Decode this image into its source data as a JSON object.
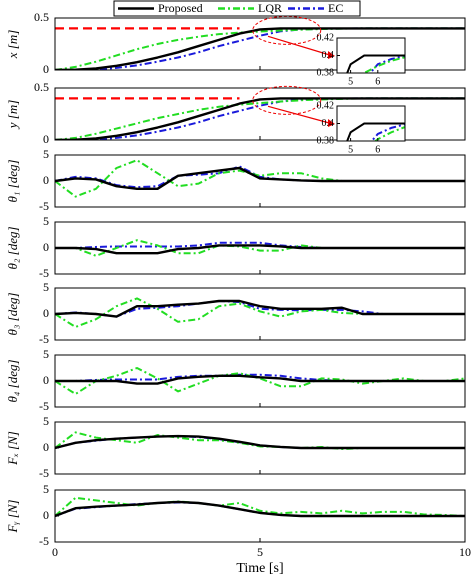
{
  "chart_data": [
    {
      "type": "line",
      "ylabel": "x [m]",
      "legend": "top",
      "x": [
        0,
        0.5,
        1,
        1.5,
        2,
        2.5,
        3,
        3.5,
        4,
        4.5,
        5,
        5.5,
        6,
        6.5,
        7,
        7.5,
        8,
        8.5,
        9,
        9.5,
        10
      ],
      "xlim": [
        0,
        10
      ],
      "xticks": [
        0,
        5,
        10
      ],
      "ylim": [
        0,
        0.5
      ],
      "yticks": [
        0,
        0.5
      ],
      "series": [
        {
          "name": "Proposed",
          "color": "#000000",
          "linestyle": "solid",
          "values": [
            0,
            0.003,
            0.015,
            0.04,
            0.075,
            0.12,
            0.17,
            0.23,
            0.29,
            0.35,
            0.39,
            0.4,
            0.4,
            0.4,
            0.4,
            0.4,
            0.4,
            0.4,
            0.4,
            0.4,
            0.4
          ]
        },
        {
          "name": "LQR",
          "color": "#22dd22",
          "linestyle": "dashdot",
          "values": [
            0,
            0.03,
            0.08,
            0.14,
            0.2,
            0.25,
            0.29,
            0.32,
            0.345,
            0.36,
            0.37,
            0.38,
            0.388,
            0.394,
            0.398,
            0.4,
            0.4,
            0.4,
            0.4,
            0.4,
            0.4
          ]
        },
        {
          "name": "EC",
          "color": "#1a1adb",
          "linestyle": "dashdot",
          "values": [
            0,
            0.002,
            0.008,
            0.02,
            0.045,
            0.08,
            0.12,
            0.17,
            0.23,
            0.28,
            0.33,
            0.372,
            0.39,
            0.396,
            0.399,
            0.4,
            0.4,
            0.4,
            0.4,
            0.4,
            0.4
          ]
        }
      ],
      "reference": {
        "color": "#ff0000",
        "values": [
          0.4,
          0.4,
          0.4,
          0.4,
          0.4,
          0.4,
          0.4,
          0.4,
          0.4,
          0.4,
          null,
          null,
          null,
          null,
          null,
          null,
          null,
          null,
          null,
          null,
          null
        ]
      },
      "inset": {
        "xlim": [
          4.5,
          7
        ],
        "xticks": [
          5,
          6
        ],
        "ylim": [
          0.38,
          0.42
        ],
        "yticks": [
          0.38,
          0.4,
          0.42
        ]
      }
    },
    {
      "type": "line",
      "ylabel": "y [m]",
      "x": [
        0,
        0.5,
        1,
        1.5,
        2,
        2.5,
        3,
        3.5,
        4,
        4.5,
        5,
        5.5,
        6,
        6.5,
        7,
        7.5,
        8,
        8.5,
        9,
        9.5,
        10
      ],
      "xlim": [
        0,
        10
      ],
      "xticks": [
        0,
        5,
        10
      ],
      "ylim": [
        0,
        0.5
      ],
      "yticks": [
        0,
        0.5
      ],
      "series": [
        {
          "color": "#000000",
          "linestyle": "solid",
          "values": [
            0,
            0.003,
            0.015,
            0.04,
            0.075,
            0.12,
            0.17,
            0.23,
            0.29,
            0.35,
            0.39,
            0.4,
            0.4,
            0.4,
            0.4,
            0.4,
            0.4,
            0.4,
            0.4,
            0.4,
            0.4
          ]
        },
        {
          "color": "#22dd22",
          "linestyle": "dashdot",
          "values": [
            0,
            0.02,
            0.06,
            0.11,
            0.16,
            0.21,
            0.25,
            0.29,
            0.32,
            0.34,
            0.355,
            0.37,
            0.382,
            0.39,
            0.396,
            0.4,
            0.4,
            0.4,
            0.4,
            0.4,
            0.4
          ]
        },
        {
          "color": "#1a1adb",
          "linestyle": "dashdot",
          "values": [
            0,
            0.002,
            0.008,
            0.02,
            0.045,
            0.08,
            0.12,
            0.17,
            0.23,
            0.28,
            0.33,
            0.37,
            0.388,
            0.395,
            0.399,
            0.4,
            0.4,
            0.4,
            0.4,
            0.4,
            0.4
          ]
        }
      ],
      "reference": {
        "color": "#ff0000",
        "values": [
          0.4,
          0.4,
          0.4,
          0.4,
          0.4,
          0.4,
          0.4,
          0.4,
          0.4,
          0.4,
          null,
          null,
          null,
          null,
          null,
          null,
          null,
          null,
          null,
          null,
          null
        ]
      },
      "inset": {
        "xlim": [
          4.5,
          7
        ],
        "xticks": [
          5,
          6
        ],
        "ylim": [
          0.38,
          0.42
        ],
        "yticks": [
          0.38,
          0.4,
          0.42
        ]
      }
    },
    {
      "type": "line",
      "ylabel": "θ₁ [deg]",
      "x": [
        0,
        0.5,
        1,
        1.5,
        2,
        2.5,
        3,
        3.5,
        4,
        4.5,
        5,
        5.5,
        6,
        6.5,
        7,
        7.5,
        8,
        8.5,
        9,
        9.5,
        10
      ],
      "xlim": [
        0,
        10
      ],
      "xticks": [
        0,
        5,
        10
      ],
      "ylim": [
        -5,
        5
      ],
      "yticks": [
        -5,
        0,
        5
      ],
      "series": [
        {
          "color": "#000000",
          "linestyle": "solid",
          "values": [
            0,
            0.5,
            0.3,
            -1,
            -1.5,
            -1.5,
            1,
            1.5,
            2,
            2.5,
            0.5,
            0.3,
            0.1,
            0,
            0,
            0,
            0,
            0,
            0,
            0,
            0
          ]
        },
        {
          "color": "#22dd22",
          "linestyle": "dashdot",
          "values": [
            0,
            -3,
            -1.5,
            2.5,
            4,
            1.5,
            -1,
            -0.5,
            1.5,
            2,
            1,
            1.5,
            1.5,
            0.5,
            0,
            0,
            0,
            0,
            0,
            0,
            0
          ]
        },
        {
          "color": "#1a1adb",
          "linestyle": "dashdot",
          "values": [
            0,
            0.8,
            0.5,
            -0.8,
            -1.2,
            -1,
            1,
            1.2,
            1.5,
            2.8,
            0.8,
            0.3,
            0.1,
            0,
            0,
            0,
            0,
            0,
            0,
            0,
            0
          ]
        }
      ]
    },
    {
      "type": "line",
      "ylabel": "θ₂ [deg]",
      "x": [
        0,
        0.5,
        1,
        1.5,
        2,
        2.5,
        3,
        3.5,
        4,
        4.5,
        5,
        5.5,
        6,
        6.5,
        7,
        7.5,
        8,
        8.5,
        9,
        9.5,
        10
      ],
      "xlim": [
        0,
        10
      ],
      "xticks": [
        0,
        5,
        10
      ],
      "ylim": [
        -5,
        5
      ],
      "yticks": [
        -5,
        0,
        5
      ],
      "series": [
        {
          "color": "#000000",
          "linestyle": "solid",
          "values": [
            0,
            0,
            -0.2,
            -1,
            -1,
            -1,
            -0.2,
            0,
            0.5,
            0.5,
            0.5,
            0.3,
            0,
            0,
            0,
            0,
            0,
            0,
            0,
            0,
            0
          ]
        },
        {
          "color": "#22dd22",
          "linestyle": "dashdot",
          "values": [
            0,
            0,
            -1.5,
            0,
            1.5,
            0.5,
            -1,
            -1,
            0.5,
            0.3,
            -0.5,
            -0.5,
            0.5,
            0,
            0,
            0,
            0,
            0,
            0,
            0,
            0
          ]
        },
        {
          "color": "#1a1adb",
          "linestyle": "dashdot",
          "values": [
            0,
            0,
            0.2,
            0.3,
            0.3,
            0.3,
            0.3,
            0.5,
            1,
            1,
            1,
            0.5,
            0.2,
            0,
            0,
            0,
            0,
            0,
            0,
            0,
            0
          ]
        }
      ]
    },
    {
      "type": "line",
      "ylabel": "θ₃ [deg]",
      "x": [
        0,
        0.5,
        1,
        1.5,
        2,
        2.5,
        3,
        3.5,
        4,
        4.5,
        5,
        5.5,
        6,
        6.5,
        7,
        7.5,
        8,
        8.5,
        9,
        9.5,
        10
      ],
      "xlim": [
        0,
        10
      ],
      "xticks": [
        0,
        5,
        10
      ],
      "ylim": [
        -5,
        5
      ],
      "yticks": [
        -5,
        0,
        5
      ],
      "series": [
        {
          "color": "#000000",
          "linestyle": "solid",
          "values": [
            0,
            0.2,
            0,
            -0.5,
            1.5,
            1.5,
            1.8,
            2,
            2.5,
            2.5,
            1.5,
            1,
            1,
            1,
            1.2,
            0,
            0,
            0,
            0,
            0,
            0
          ]
        },
        {
          "color": "#22dd22",
          "linestyle": "dashdot",
          "values": [
            0,
            -2.5,
            -1,
            1.5,
            3,
            1,
            -1.5,
            -1,
            1.5,
            2,
            0.5,
            -0.5,
            0.5,
            0.8,
            0.2,
            0,
            0,
            0,
            0,
            0,
            0
          ]
        },
        {
          "color": "#1a1adb",
          "linestyle": "dashdot",
          "values": [
            0,
            0.3,
            0,
            -0.5,
            1,
            1.2,
            1.5,
            2,
            2.5,
            2.3,
            1,
            0.8,
            0.7,
            0.8,
            0.8,
            0.5,
            0,
            0,
            0,
            0,
            0
          ]
        }
      ]
    },
    {
      "type": "line",
      "ylabel": "θ₄ [deg]",
      "x": [
        0,
        0.5,
        1,
        1.5,
        2,
        2.5,
        3,
        3.5,
        4,
        4.5,
        5,
        5.5,
        6,
        6.5,
        7,
        7.5,
        8,
        8.5,
        9,
        9.5,
        10
      ],
      "xlim": [
        0,
        10
      ],
      "xticks": [
        0,
        5,
        10
      ],
      "ylim": [
        -5,
        5
      ],
      "yticks": [
        -5,
        0,
        5
      ],
      "series": [
        {
          "color": "#000000",
          "linestyle": "solid",
          "values": [
            0,
            0,
            0,
            0,
            -0.5,
            -0.5,
            0.5,
            0.8,
            1,
            1,
            0.7,
            0.5,
            0,
            0,
            0,
            0,
            0,
            0,
            0,
            0,
            0
          ]
        },
        {
          "color": "#22dd22",
          "linestyle": "dashdot",
          "values": [
            0,
            -2.5,
            0,
            1,
            2.5,
            0.5,
            -2,
            -0.5,
            1,
            1.5,
            0.5,
            -1,
            -1,
            0.5,
            0.3,
            -0.5,
            0,
            0.5,
            0,
            0,
            0.5
          ]
        },
        {
          "color": "#1a1adb",
          "linestyle": "dashdot",
          "values": [
            0,
            0,
            0.2,
            0.3,
            0.3,
            0.3,
            0.8,
            1,
            1,
            1.2,
            1.2,
            1,
            0.5,
            0.2,
            0,
            0,
            0,
            0,
            0,
            0,
            0
          ]
        }
      ]
    },
    {
      "type": "line",
      "ylabel": "Fₓ [N]",
      "x": [
        0,
        0.5,
        1,
        1.5,
        2,
        2.5,
        3,
        3.5,
        4,
        4.5,
        5,
        5.5,
        6,
        6.5,
        7,
        7.5,
        8,
        8.5,
        9,
        9.5,
        10
      ],
      "xlim": [
        0,
        10
      ],
      "xticks": [
        0,
        5,
        10
      ],
      "ylim": [
        -5,
        5
      ],
      "yticks": [
        -5,
        0,
        5
      ],
      "series": [
        {
          "color": "#000000",
          "linestyle": "solid",
          "values": [
            0,
            1,
            1.5,
            1.8,
            2,
            2.2,
            2.3,
            2.2,
            1.8,
            1.2,
            0.5,
            0.2,
            0,
            0,
            0,
            0,
            0,
            0,
            0,
            0,
            0
          ]
        },
        {
          "color": "#22dd22",
          "linestyle": "dashdot",
          "values": [
            0,
            3,
            2,
            1.5,
            1,
            2.5,
            2,
            1.5,
            1.5,
            1,
            0.3,
            0.2,
            0,
            0.2,
            -0.2,
            0,
            0,
            0,
            0,
            0,
            0
          ]
        },
        {
          "color": "#1a1adb",
          "linestyle": "dashdot",
          "values": [
            0,
            1,
            1.4,
            1.8,
            2,
            2.2,
            2.3,
            2.1,
            1.7,
            1.1,
            0.5,
            0.2,
            0,
            0,
            0,
            0,
            0,
            0,
            0,
            0,
            0
          ]
        }
      ]
    },
    {
      "type": "line",
      "ylabel": "Fᵧ [N]",
      "xlabel": "Time [s]",
      "x": [
        0,
        0.5,
        1,
        1.5,
        2,
        2.5,
        3,
        3.5,
        4,
        4.5,
        5,
        5.5,
        6,
        6.5,
        7,
        7.5,
        8,
        8.5,
        9,
        9.5,
        10
      ],
      "xlim": [
        0,
        10
      ],
      "xticks": [
        0,
        5,
        10
      ],
      "ylim": [
        -5,
        5
      ],
      "yticks": [
        -5,
        0,
        5
      ],
      "series": [
        {
          "color": "#000000",
          "linestyle": "solid",
          "values": [
            0,
            1.5,
            1.8,
            2,
            2.2,
            2.5,
            2.7,
            2.5,
            2,
            1.3,
            0.6,
            0.2,
            0,
            0,
            0,
            0,
            0,
            0,
            0,
            0,
            0
          ]
        },
        {
          "color": "#22dd22",
          "linestyle": "dashdot",
          "values": [
            0,
            3.5,
            3,
            2.5,
            2,
            2.5,
            2.8,
            2.5,
            2,
            2.5,
            1,
            0.5,
            0.8,
            0.5,
            1,
            0.5,
            0.8,
            0.8,
            0.3,
            0.2,
            0
          ]
        },
        {
          "color": "#1a1adb",
          "linestyle": "dashdot",
          "values": [
            0,
            1.4,
            1.7,
            2,
            2.3,
            2.5,
            2.6,
            2.5,
            2,
            1.3,
            0.6,
            0.2,
            0,
            0,
            0,
            0,
            0,
            0,
            0,
            0,
            0
          ]
        }
      ]
    }
  ]
}
